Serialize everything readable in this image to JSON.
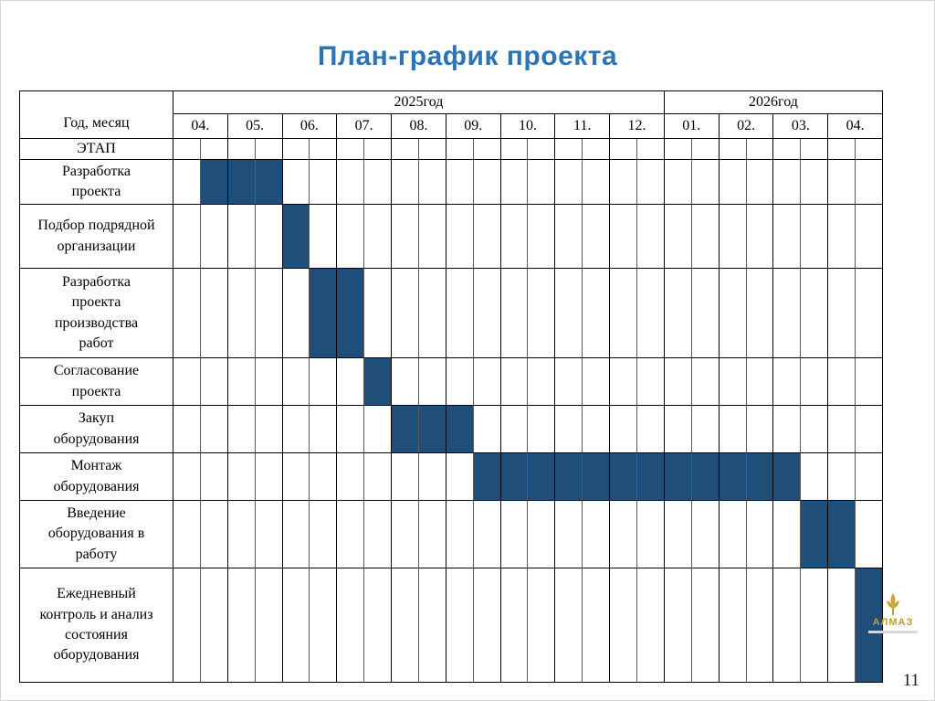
{
  "title": "План-график проекта",
  "page_number": "11",
  "logo": {
    "text": "АЛМАЗ"
  },
  "colors": {
    "title": "#2E74B5",
    "bar": "#1F4E79",
    "logo_gold": "#C19A3B"
  },
  "chart_data": {
    "type": "gantt",
    "title": "План-график проекта",
    "corner_label": "Год, месяц",
    "stage_row_label": "ЭТАП",
    "year_groups": [
      {
        "label": "2025год",
        "month_count": 9
      },
      {
        "label": "2026год",
        "month_count": 4
      }
    ],
    "month_labels": [
      "04.",
      "05.",
      "06.",
      "07.",
      "08.",
      "09.",
      "10.",
      "11.",
      "12.",
      "01.",
      "02.",
      "03.",
      "04."
    ],
    "subdivisions_per_month": 2,
    "bar_color": "#1F4E79",
    "tasks": [
      {
        "label": "Разработка\nпроекта",
        "bar_start": 1,
        "bar_span": 3
      },
      {
        "label": "Подбор подрядной\nорганизации",
        "bar_start": 4,
        "bar_span": 1
      },
      {
        "label": "Разработка\nпроекта\nпроизводства\nработ",
        "bar_start": 5,
        "bar_span": 2
      },
      {
        "label": "Согласование\nпроекта",
        "bar_start": 7,
        "bar_span": 1
      },
      {
        "label": "Закуп\nоборудования",
        "bar_start": 8,
        "bar_span": 3
      },
      {
        "label": "Монтаж\nоборудования",
        "bar_start": 11,
        "bar_span": 12
      },
      {
        "label": "Введение\nоборудования в\nработу",
        "bar_start": 23,
        "bar_span": 2
      },
      {
        "label": "Ежедневный\nконтроль и анализ\nсостояния\nоборудования",
        "bar_start": 25,
        "bar_span": 1
      }
    ]
  }
}
